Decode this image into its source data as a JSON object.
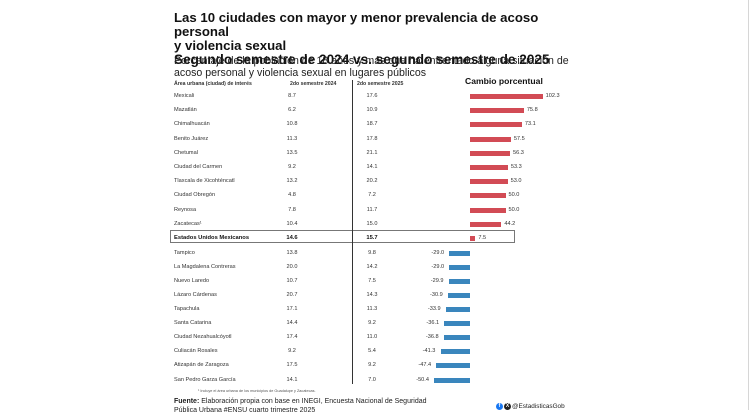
{
  "title": {
    "line1": "Las 10 ciudades con mayor y menor prevalencia de acoso personal",
    "line2": "y violencia sexual",
    "line3": "Segundo semestre de 2024 vs. segundo semestre de 2025"
  },
  "subtitle": "Porcentaje de la población de 18 años y más que ha enfrentado alguna situación de acoso personal y violencia sexual en lugares públicos",
  "headers": {
    "area": "Área urbana (ciudad) de interés",
    "s2024": "2do semestre 2024",
    "s2025": "2do semestre 2025",
    "change": "Cambio porcentual"
  },
  "colors": {
    "increase": "#d24b55",
    "decrease": "#3a86bd"
  },
  "chart_data": {
    "type": "bar",
    "orientation": "horizontal",
    "title": "Cambio porcentual",
    "columns": [
      "Área urbana (ciudad) de interés",
      "2do semestre 2024",
      "2do semestre 2025",
      "Cambio porcentual"
    ],
    "rows": [
      {
        "city": "Mexicali",
        "s2024": "8.7",
        "s2025": "17.6",
        "change": 102.3
      },
      {
        "city": "Mazatlán",
        "s2024": "6.2",
        "s2025": "10.9",
        "change": 75.8
      },
      {
        "city": "Chimalhuacán",
        "s2024": "10.8",
        "s2025": "18.7",
        "change": 73.1
      },
      {
        "city": "Benito Juárez",
        "s2024": "11.3",
        "s2025": "17.8",
        "change": 57.5
      },
      {
        "city": "Chetumal",
        "s2024": "13.5",
        "s2025": "21.1",
        "change": 56.3
      },
      {
        "city": "Ciudad del Carmen",
        "s2024": "9.2",
        "s2025": "14.1",
        "change": 53.3
      },
      {
        "city": "Tlaxcala de Xicohténcatl",
        "s2024": "13.2",
        "s2025": "20.2",
        "change": 53.0
      },
      {
        "city": "Ciudad Obregón",
        "s2024": "4.8",
        "s2025": "7.2",
        "change": 50.0
      },
      {
        "city": "Reynosa",
        "s2024": "7.8",
        "s2025": "11.7",
        "change": 50.0
      },
      {
        "city": "Zacatecas¹",
        "s2024": "10.4",
        "s2025": "15.0",
        "change": 44.2
      },
      {
        "city": "Estados Unidos Mexicanos",
        "s2024": "14.6",
        "s2025": "15.7",
        "change": 7.5,
        "total": true
      },
      {
        "city": "Tampico",
        "s2024": "13.8",
        "s2025": "9.8",
        "change": -29.0
      },
      {
        "city": "La Magdalena Contreras",
        "s2024": "20.0",
        "s2025": "14.2",
        "change": -29.0
      },
      {
        "city": "Nuevo Laredo",
        "s2024": "10.7",
        "s2025": "7.5",
        "change": -29.9
      },
      {
        "city": "Lázaro Cárdenas",
        "s2024": "20.7",
        "s2025": "14.3",
        "change": -30.9
      },
      {
        "city": "Tapachula",
        "s2024": "17.1",
        "s2025": "11.3",
        "change": -33.9
      },
      {
        "city": "Santa Catarina",
        "s2024": "14.4",
        "s2025": "9.2",
        "change": -36.1
      },
      {
        "city": "Ciudad Nezahualcóyotl",
        "s2024": "17.4",
        "s2025": "11.0",
        "change": -36.8
      },
      {
        "city": "Culiacán Rosales",
        "s2024": "9.2",
        "s2025": "5.4",
        "change": -41.3
      },
      {
        "city": "Atizapán de Zaragoza",
        "s2024": "17.5",
        "s2025": "9.2",
        "change": -47.4
      },
      {
        "city": "San Pedro Garza García",
        "s2024": "14.1",
        "s2025": "7.0",
        "change": -50.4
      }
    ],
    "xlim": [
      -50.4,
      102.3
    ]
  },
  "footnote": "¹ Incluye el área urbana de los municipios de Guadalupe y Zacatecas.",
  "source": {
    "label": "Fuente:",
    "text": " Elaboración propia con base en INEGI, Encuesta Nacional de Seguridad Pública Urbana #ENSU cuarto trimestre 2025"
  },
  "social": {
    "handle": "@EstadisticasGob",
    "icons": [
      "facebook-icon",
      "x-icon"
    ]
  }
}
